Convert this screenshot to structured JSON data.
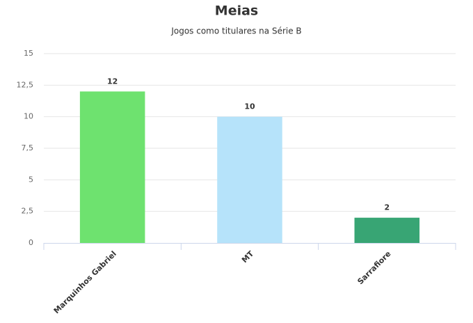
{
  "chart_data": {
    "type": "bar",
    "title": "Meias",
    "subtitle": "Jogos como titulares na Série B",
    "categories": [
      "Marquinhos Gabriel",
      "MT",
      "Sarrafiore"
    ],
    "values": [
      12,
      10,
      2
    ],
    "colors": [
      "#6ee26f",
      "#b6e3fa",
      "#38a574"
    ],
    "ylim": [
      0,
      15
    ],
    "yticks": [
      0,
      {
        "value": 2.5,
        "label": "2,5"
      },
      5,
      {
        "value": 7.5,
        "label": "7,5"
      },
      10,
      {
        "value": 12.5,
        "label": "12,5"
      },
      15
    ],
    "grid": true
  }
}
